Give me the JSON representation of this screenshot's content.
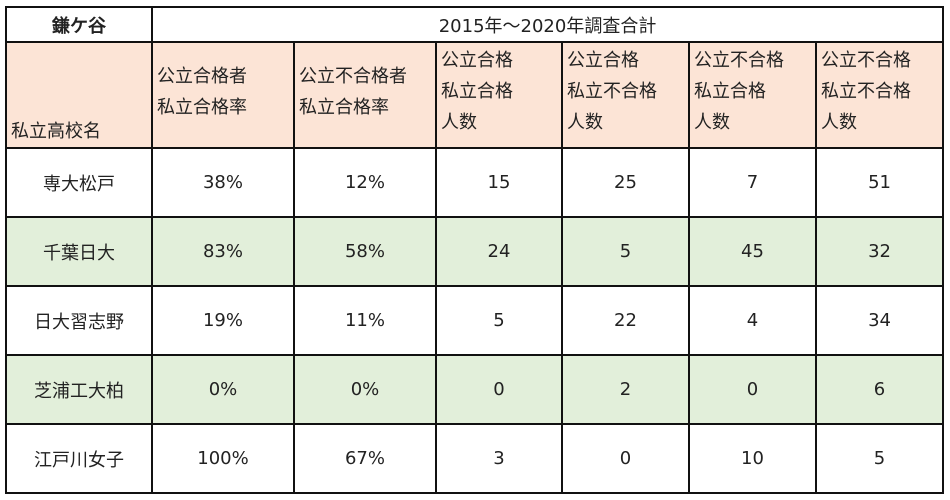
{
  "table": {
    "school_label": "鎌ケ谷",
    "period_label": "2015年～2020年調査合計",
    "headers": {
      "name": "私立高校名",
      "c1": [
        "公立合格者",
        "私立合格率"
      ],
      "c2": [
        "公立不合格者",
        "私立合格率"
      ],
      "c3": [
        "公立合格",
        "私立合格",
        "人数"
      ],
      "c4": [
        "公立合格",
        "私立不合格",
        "人数"
      ],
      "c5": [
        "公立不合格",
        "私立合格",
        "人数"
      ],
      "c6": [
        "公立不合格",
        "私立不合格",
        "人数"
      ]
    },
    "rows": [
      {
        "name": "専大松戸",
        "c1": "38%",
        "c2": "12%",
        "c3": "15",
        "c4": "25",
        "c5": "7",
        "c6": "51"
      },
      {
        "name": "千葉日大",
        "c1": "83%",
        "c2": "58%",
        "c3": "24",
        "c4": "5",
        "c5": "45",
        "c6": "32"
      },
      {
        "name": "日大習志野",
        "c1": "19%",
        "c2": "11%",
        "c3": "5",
        "c4": "22",
        "c5": "4",
        "c6": "34"
      },
      {
        "name": "芝浦工大柏",
        "c1": "0%",
        "c2": "0%",
        "c3": "0",
        "c4": "2",
        "c5": "0",
        "c6": "6"
      },
      {
        "name": "江戸川女子",
        "c1": "100%",
        "c2": "67%",
        "c3": "3",
        "c4": "0",
        "c5": "10",
        "c6": "5"
      }
    ],
    "colors": {
      "header_bg": "#fce4d6",
      "stripe_bg": "#e2efda",
      "border": "#111111"
    }
  }
}
